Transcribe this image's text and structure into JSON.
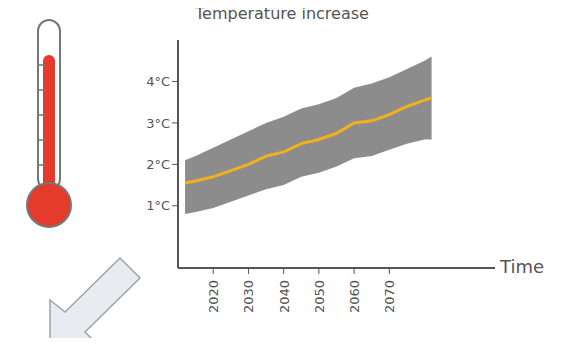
{
  "chart_data": {
    "type": "line",
    "y_label": "Temperature increase",
    "x_label": "Time",
    "x": [
      2012,
      2015,
      2020,
      2025,
      2030,
      2035,
      2040,
      2045,
      2050,
      2055,
      2060,
      2065,
      2070,
      2075,
      2080,
      2082
    ],
    "values": [
      1.55,
      1.6,
      1.7,
      1.85,
      2.0,
      2.2,
      2.3,
      2.5,
      2.6,
      2.75,
      3.0,
      3.05,
      3.2,
      3.4,
      3.55,
      3.6
    ],
    "color": "#f2b01e",
    "band": {
      "lower": [
        0.8,
        0.85,
        0.95,
        1.1,
        1.25,
        1.4,
        1.5,
        1.7,
        1.8,
        1.95,
        2.15,
        2.2,
        2.35,
        2.5,
        2.6,
        2.6
      ],
      "upper": [
        2.1,
        2.2,
        2.4,
        2.6,
        2.8,
        3.0,
        3.15,
        3.35,
        3.45,
        3.6,
        3.85,
        3.95,
        4.1,
        4.3,
        4.5,
        4.6
      ],
      "color": "#8c8c8c"
    },
    "xlim": [
      2010,
      2100
    ],
    "xticks": [
      2020,
      2030,
      2040,
      2050,
      2060,
      2070
    ],
    "ylim": [
      -0.5,
      5
    ],
    "yticks": [
      {
        "value": 1,
        "label": "1°C"
      },
      {
        "value": 2,
        "label": "2°C"
      },
      {
        "value": 3,
        "label": "3°C"
      },
      {
        "value": 4,
        "label": "4°C"
      }
    ],
    "grid": false
  }
}
